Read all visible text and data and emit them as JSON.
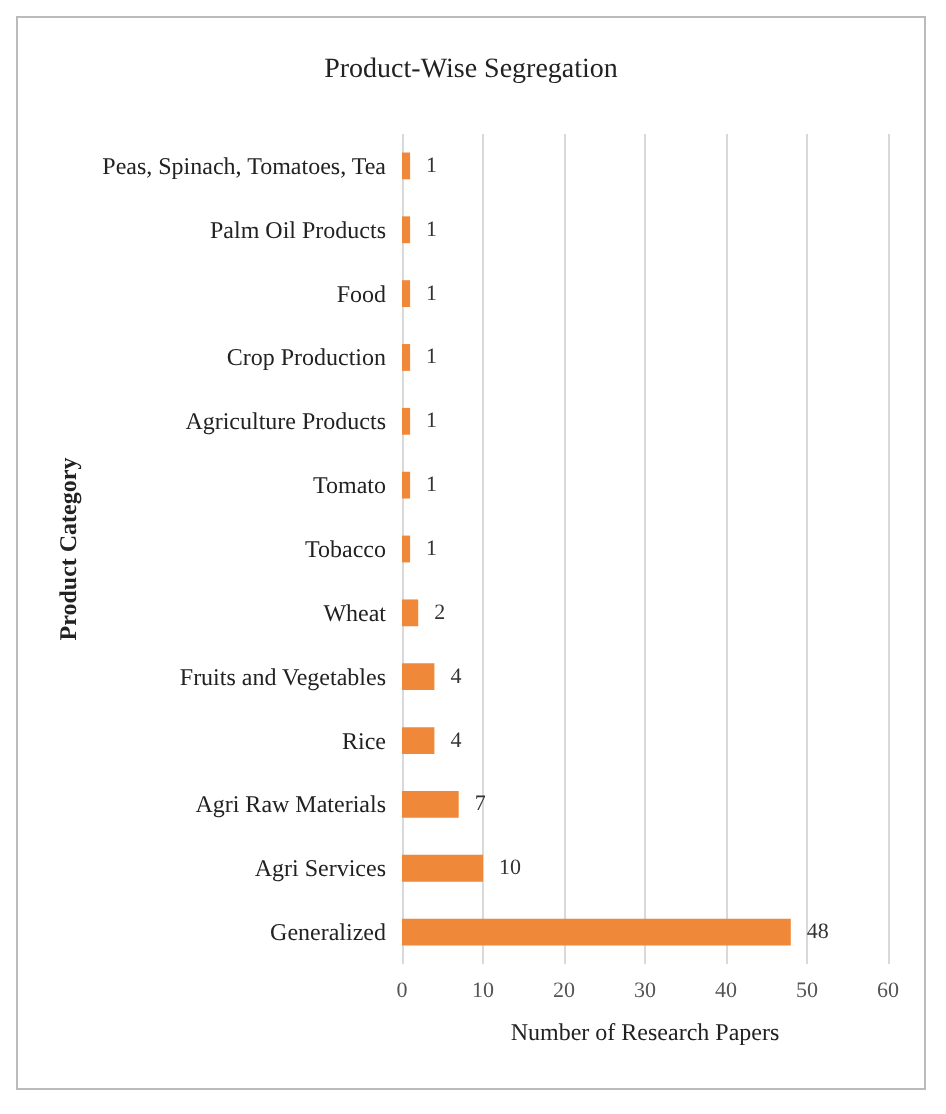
{
  "chart_data": {
    "type": "bar",
    "orientation": "horizontal",
    "title": "Product-Wise Segregation",
    "xlabel": "Number of Research Papers",
    "ylabel": "Product Category",
    "categories": [
      "Peas, Spinach, Tomatoes, Tea",
      "Palm Oil Products",
      "Food",
      "Crop Production",
      "Agriculture Products",
      "Tomato",
      "Tobacco",
      "Wheat",
      "Fruits and Vegetables",
      "Rice",
      "Agri Raw Materials",
      "Agri Services",
      "Generalized"
    ],
    "values": [
      1,
      1,
      1,
      1,
      1,
      1,
      1,
      2,
      4,
      4,
      7,
      10,
      48
    ],
    "color": "#f0883a",
    "xlim": [
      0,
      60
    ],
    "xticks": [
      0,
      10,
      20,
      30,
      40,
      50,
      60
    ],
    "grid": "x",
    "data_labels": true
  }
}
